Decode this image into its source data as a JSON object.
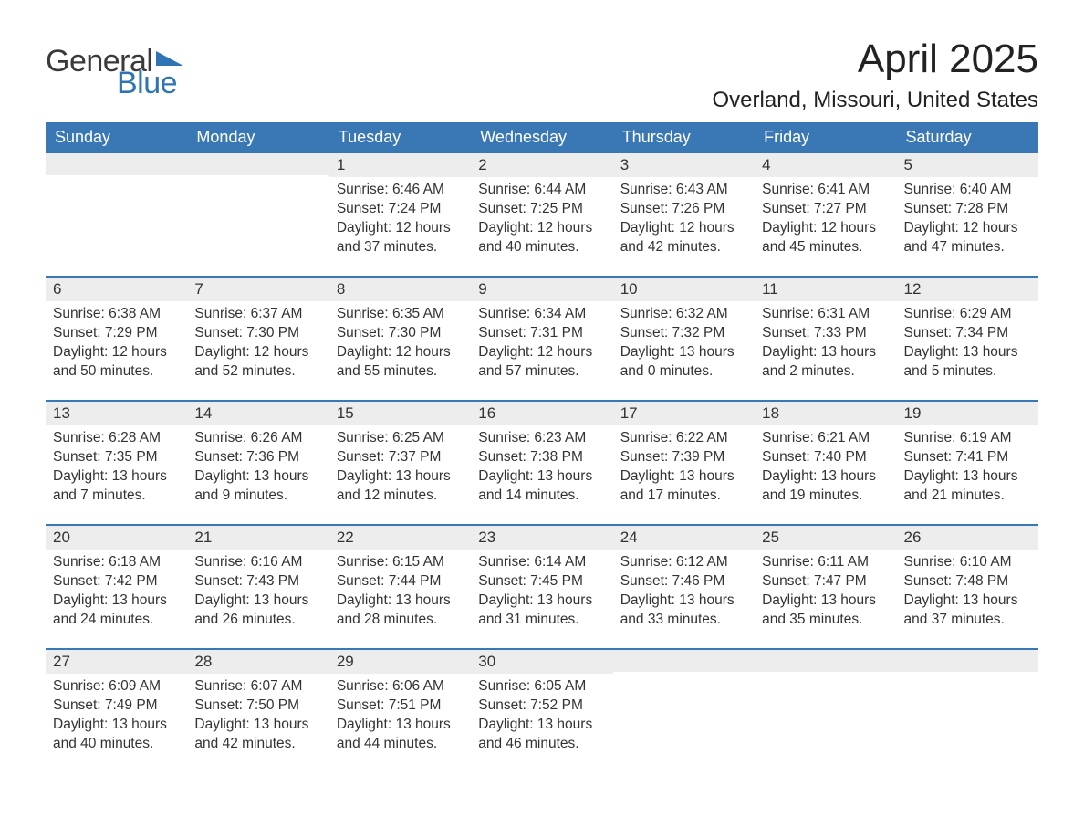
{
  "logo": {
    "text1": "General",
    "text2": "Blue",
    "mark_color": "#2f75b5"
  },
  "title": "April 2025",
  "location": "Overland, Missouri, United States",
  "colors": {
    "header_bg": "#3a78b5",
    "header_text": "#ffffff",
    "daynum_bg": "#ededed",
    "week_border": "#3a78b5",
    "body_text": "#333333",
    "page_bg": "#ffffff"
  },
  "weekdays": [
    "Sunday",
    "Monday",
    "Tuesday",
    "Wednesday",
    "Thursday",
    "Friday",
    "Saturday"
  ],
  "weeks": [
    [
      {
        "n": "",
        "sunrise": "",
        "sunset": "",
        "daylight": ""
      },
      {
        "n": "",
        "sunrise": "",
        "sunset": "",
        "daylight": ""
      },
      {
        "n": "1",
        "sunrise": "Sunrise: 6:46 AM",
        "sunset": "Sunset: 7:24 PM",
        "daylight": "Daylight: 12 hours and 37 minutes."
      },
      {
        "n": "2",
        "sunrise": "Sunrise: 6:44 AM",
        "sunset": "Sunset: 7:25 PM",
        "daylight": "Daylight: 12 hours and 40 minutes."
      },
      {
        "n": "3",
        "sunrise": "Sunrise: 6:43 AM",
        "sunset": "Sunset: 7:26 PM",
        "daylight": "Daylight: 12 hours and 42 minutes."
      },
      {
        "n": "4",
        "sunrise": "Sunrise: 6:41 AM",
        "sunset": "Sunset: 7:27 PM",
        "daylight": "Daylight: 12 hours and 45 minutes."
      },
      {
        "n": "5",
        "sunrise": "Sunrise: 6:40 AM",
        "sunset": "Sunset: 7:28 PM",
        "daylight": "Daylight: 12 hours and 47 minutes."
      }
    ],
    [
      {
        "n": "6",
        "sunrise": "Sunrise: 6:38 AM",
        "sunset": "Sunset: 7:29 PM",
        "daylight": "Daylight: 12 hours and 50 minutes."
      },
      {
        "n": "7",
        "sunrise": "Sunrise: 6:37 AM",
        "sunset": "Sunset: 7:30 PM",
        "daylight": "Daylight: 12 hours and 52 minutes."
      },
      {
        "n": "8",
        "sunrise": "Sunrise: 6:35 AM",
        "sunset": "Sunset: 7:30 PM",
        "daylight": "Daylight: 12 hours and 55 minutes."
      },
      {
        "n": "9",
        "sunrise": "Sunrise: 6:34 AM",
        "sunset": "Sunset: 7:31 PM",
        "daylight": "Daylight: 12 hours and 57 minutes."
      },
      {
        "n": "10",
        "sunrise": "Sunrise: 6:32 AM",
        "sunset": "Sunset: 7:32 PM",
        "daylight": "Daylight: 13 hours and 0 minutes."
      },
      {
        "n": "11",
        "sunrise": "Sunrise: 6:31 AM",
        "sunset": "Sunset: 7:33 PM",
        "daylight": "Daylight: 13 hours and 2 minutes."
      },
      {
        "n": "12",
        "sunrise": "Sunrise: 6:29 AM",
        "sunset": "Sunset: 7:34 PM",
        "daylight": "Daylight: 13 hours and 5 minutes."
      }
    ],
    [
      {
        "n": "13",
        "sunrise": "Sunrise: 6:28 AM",
        "sunset": "Sunset: 7:35 PM",
        "daylight": "Daylight: 13 hours and 7 minutes."
      },
      {
        "n": "14",
        "sunrise": "Sunrise: 6:26 AM",
        "sunset": "Sunset: 7:36 PM",
        "daylight": "Daylight: 13 hours and 9 minutes."
      },
      {
        "n": "15",
        "sunrise": "Sunrise: 6:25 AM",
        "sunset": "Sunset: 7:37 PM",
        "daylight": "Daylight: 13 hours and 12 minutes."
      },
      {
        "n": "16",
        "sunrise": "Sunrise: 6:23 AM",
        "sunset": "Sunset: 7:38 PM",
        "daylight": "Daylight: 13 hours and 14 minutes."
      },
      {
        "n": "17",
        "sunrise": "Sunrise: 6:22 AM",
        "sunset": "Sunset: 7:39 PM",
        "daylight": "Daylight: 13 hours and 17 minutes."
      },
      {
        "n": "18",
        "sunrise": "Sunrise: 6:21 AM",
        "sunset": "Sunset: 7:40 PM",
        "daylight": "Daylight: 13 hours and 19 minutes."
      },
      {
        "n": "19",
        "sunrise": "Sunrise: 6:19 AM",
        "sunset": "Sunset: 7:41 PM",
        "daylight": "Daylight: 13 hours and 21 minutes."
      }
    ],
    [
      {
        "n": "20",
        "sunrise": "Sunrise: 6:18 AM",
        "sunset": "Sunset: 7:42 PM",
        "daylight": "Daylight: 13 hours and 24 minutes."
      },
      {
        "n": "21",
        "sunrise": "Sunrise: 6:16 AM",
        "sunset": "Sunset: 7:43 PM",
        "daylight": "Daylight: 13 hours and 26 minutes."
      },
      {
        "n": "22",
        "sunrise": "Sunrise: 6:15 AM",
        "sunset": "Sunset: 7:44 PM",
        "daylight": "Daylight: 13 hours and 28 minutes."
      },
      {
        "n": "23",
        "sunrise": "Sunrise: 6:14 AM",
        "sunset": "Sunset: 7:45 PM",
        "daylight": "Daylight: 13 hours and 31 minutes."
      },
      {
        "n": "24",
        "sunrise": "Sunrise: 6:12 AM",
        "sunset": "Sunset: 7:46 PM",
        "daylight": "Daylight: 13 hours and 33 minutes."
      },
      {
        "n": "25",
        "sunrise": "Sunrise: 6:11 AM",
        "sunset": "Sunset: 7:47 PM",
        "daylight": "Daylight: 13 hours and 35 minutes."
      },
      {
        "n": "26",
        "sunrise": "Sunrise: 6:10 AM",
        "sunset": "Sunset: 7:48 PM",
        "daylight": "Daylight: 13 hours and 37 minutes."
      }
    ],
    [
      {
        "n": "27",
        "sunrise": "Sunrise: 6:09 AM",
        "sunset": "Sunset: 7:49 PM",
        "daylight": "Daylight: 13 hours and 40 minutes."
      },
      {
        "n": "28",
        "sunrise": "Sunrise: 6:07 AM",
        "sunset": "Sunset: 7:50 PM",
        "daylight": "Daylight: 13 hours and 42 minutes."
      },
      {
        "n": "29",
        "sunrise": "Sunrise: 6:06 AM",
        "sunset": "Sunset: 7:51 PM",
        "daylight": "Daylight: 13 hours and 44 minutes."
      },
      {
        "n": "30",
        "sunrise": "Sunrise: 6:05 AM",
        "sunset": "Sunset: 7:52 PM",
        "daylight": "Daylight: 13 hours and 46 minutes."
      },
      {
        "n": "",
        "sunrise": "",
        "sunset": "",
        "daylight": ""
      },
      {
        "n": "",
        "sunrise": "",
        "sunset": "",
        "daylight": ""
      },
      {
        "n": "",
        "sunrise": "",
        "sunset": "",
        "daylight": ""
      }
    ]
  ]
}
